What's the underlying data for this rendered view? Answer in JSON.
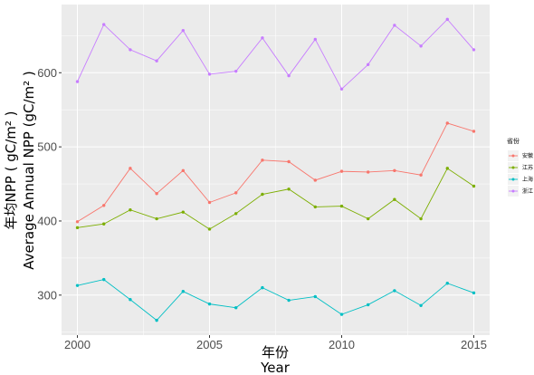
{
  "chart_data": {
    "type": "line",
    "x": [
      2000,
      2001,
      2002,
      2003,
      2004,
      2005,
      2006,
      2007,
      2008,
      2009,
      2010,
      2011,
      2012,
      2013,
      2014,
      2015
    ],
    "series": [
      {
        "name": "安徽",
        "color": "#F8766D",
        "values": [
          399,
          421,
          471,
          437,
          468,
          425,
          438,
          482,
          480,
          455,
          467,
          466,
          468,
          462,
          532,
          521
        ]
      },
      {
        "name": "江苏",
        "color": "#7CAE00",
        "values": [
          391,
          396,
          415,
          403,
          412,
          389,
          410,
          436,
          443,
          419,
          420,
          403,
          429,
          403,
          471,
          447
        ]
      },
      {
        "name": "上海",
        "color": "#00BFC4",
        "values": [
          313,
          321,
          294,
          266,
          305,
          288,
          283,
          310,
          293,
          298,
          274,
          287,
          306,
          286,
          316,
          303
        ]
      },
      {
        "name": "浙江",
        "color": "#C77CFF",
        "values": [
          588,
          665,
          631,
          616,
          657,
          598,
          602,
          647,
          596,
          645,
          578,
          611,
          664,
          636,
          672,
          631
        ]
      }
    ],
    "xlabel": [
      "年份",
      "Year"
    ],
    "ylabel": [
      "年均NPP ( gC/m² )",
      "Average Annual NPP (gC/m² )"
    ],
    "xticks": [
      2000,
      2005,
      2010,
      2015
    ],
    "yticks": [
      300,
      400,
      500,
      600
    ],
    "xlim": [
      1999.4,
      2015.6
    ],
    "ylim": [
      246,
      692
    ],
    "grid": true,
    "legend_title": "省份",
    "legend_position": "right"
  }
}
